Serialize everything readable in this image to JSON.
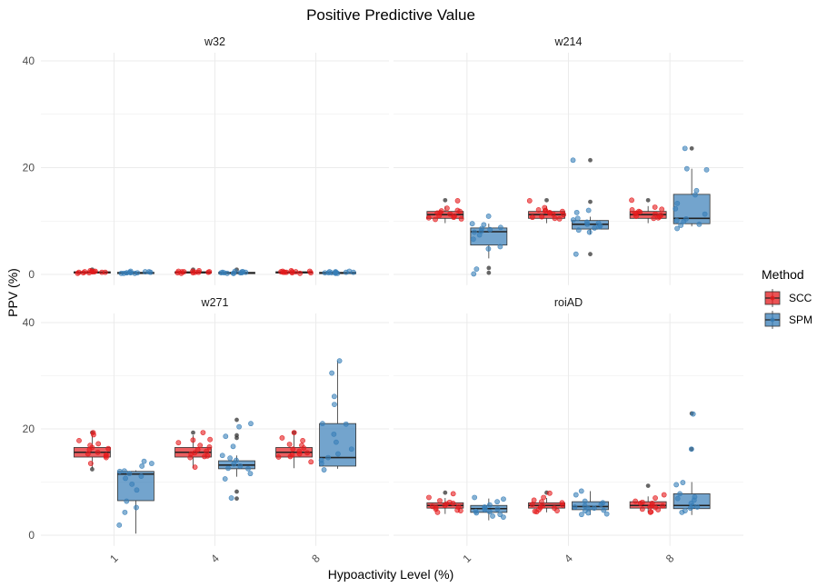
{
  "chart_data": {
    "type": "boxplot",
    "title": "Positive Predictive Value",
    "xlabel": "Hypoactivity Level (%)",
    "ylabel": "PPV (%)",
    "ylim": [
      -2,
      42
    ],
    "yticks": [
      0,
      20,
      40
    ],
    "categories": [
      "1",
      "4",
      "8"
    ],
    "legend": {
      "title": "Method",
      "placement": "right",
      "entries": [
        {
          "name": "SCC",
          "color": "#E41A1C"
        },
        {
          "name": "SPM",
          "color": "#377EB8"
        }
      ]
    },
    "colors": {
      "SCC": "#E41A1C",
      "SPM": "#377EB8",
      "grid": "#ebebeb",
      "outlier": "#333333"
    },
    "grid": true,
    "panels": [
      {
        "label": "w32",
        "boxes": {
          "SCC": [
            {
              "category": "1",
              "min": 0.1,
              "q1": 0.3,
              "median": 0.4,
              "q3": 0.5,
              "max": 0.7,
              "outliers": [
                0.9
              ]
            },
            {
              "category": "4",
              "min": 0.2,
              "q1": 0.3,
              "median": 0.4,
              "q3": 0.5,
              "max": 0.7,
              "outliers": [
                0.9
              ]
            },
            {
              "category": "8",
              "min": 0.2,
              "q1": 0.3,
              "median": 0.4,
              "q3": 0.5,
              "max": 0.7,
              "outliers": []
            }
          ],
          "SPM": [
            {
              "category": "1",
              "min": 0.1,
              "q1": 0.2,
              "median": 0.3,
              "q3": 0.4,
              "max": 0.6,
              "outliers": []
            },
            {
              "category": "4",
              "min": 0.1,
              "q1": 0.2,
              "median": 0.3,
              "q3": 0.4,
              "max": 0.6,
              "outliers": [
                0.9
              ]
            },
            {
              "category": "8",
              "min": 0.1,
              "q1": 0.2,
              "median": 0.3,
              "q3": 0.4,
              "max": 0.6,
              "outliers": []
            }
          ]
        },
        "points": {
          "SCC": [
            [
              0.6,
              0.5,
              0.4,
              0.3,
              0.7,
              0.5,
              0.2,
              0.4,
              0.6,
              0.3,
              0.5,
              0.4
            ],
            [
              0.4,
              0.6,
              0.3,
              0.5,
              0.7,
              0.2,
              0.4,
              0.6,
              0.5,
              0.3,
              0.4,
              0.5
            ],
            [
              0.5,
              0.3,
              0.6,
              0.4,
              0.7,
              0.5,
              0.2,
              0.4,
              0.6,
              0.3,
              0.5,
              0.4
            ]
          ],
          "SPM": [
            [
              0.3,
              0.4,
              0.2,
              0.5,
              0.3,
              0.6,
              0.2,
              0.4,
              0.3,
              0.5,
              0.2,
              0.3
            ],
            [
              0.3,
              0.2,
              0.4,
              0.5,
              0.3,
              0.2,
              0.6,
              0.4,
              0.3,
              0.2,
              0.5,
              0.3
            ],
            [
              0.4,
              0.3,
              0.5,
              0.2,
              0.3,
              0.6,
              0.4,
              0.2,
              0.5,
              0.3,
              0.4,
              0.3
            ]
          ]
        }
      },
      {
        "label": "w214",
        "boxes": {
          "SCC": [
            {
              "category": "1",
              "min": 9.6,
              "q1": 10.5,
              "median": 11.2,
              "q3": 11.8,
              "max": 12.8,
              "outliers": [
                13.9
              ]
            },
            {
              "category": "4",
              "min": 9.6,
              "q1": 10.5,
              "median": 11.2,
              "q3": 11.8,
              "max": 12.8,
              "outliers": [
                13.9
              ]
            },
            {
              "category": "8",
              "min": 9.6,
              "q1": 10.5,
              "median": 11.2,
              "q3": 11.8,
              "max": 12.8,
              "outliers": [
                13.9
              ]
            }
          ],
          "SPM": [
            {
              "category": "1",
              "min": 3.0,
              "q1": 5.5,
              "median": 8.0,
              "q3": 8.7,
              "max": 9.5,
              "outliers": [
                1.2,
                0.3
              ]
            },
            {
              "category": "4",
              "min": 7.5,
              "q1": 8.5,
              "median": 9.4,
              "q3": 10.1,
              "max": 10.8,
              "outliers": [
                13.6,
                3.8,
                21.4
              ]
            },
            {
              "category": "8",
              "min": 9.0,
              "q1": 9.5,
              "median": 10.5,
              "q3": 15.0,
              "max": 19.8,
              "outliers": [
                23.6
              ]
            }
          ]
        },
        "points": {
          "SCC": [
            [
              11.5,
              10.9,
              12.0,
              10.4,
              11.8,
              13.8,
              10.7,
              11.3,
              12.4,
              10.6,
              11.0,
              11.6,
              10.3,
              11.9
            ],
            [
              11.3,
              10.5,
              12.1,
              11.8,
              13.8,
              10.8,
              11.5,
              12.5,
              10.7,
              11.2,
              11.9,
              10.4,
              11.6,
              12.0
            ],
            [
              11.4,
              10.6,
              12.2,
              11.7,
              13.9,
              10.9,
              11.3,
              12.6,
              10.5,
              11.1,
              11.8,
              10.8,
              11.5,
              12.1
            ]
          ],
          "SPM": [
            [
              7.9,
              9.5,
              8.4,
              5.2,
              8.8,
              1.0,
              10.9,
              6.6,
              8.1,
              4.8,
              0.1,
              9.3,
              7.4,
              8.6
            ],
            [
              9.1,
              10.5,
              8.3,
              21.4,
              8.7,
              3.8,
              9.8,
              11.6,
              7.9,
              9.4,
              10.2,
              8.9,
              12.0,
              9.6
            ],
            [
              10.4,
              19.6,
              9.4,
              15.7,
              9.9,
              19.8,
              8.6,
              11.3,
              13.3,
              10.1,
              9.2,
              23.6,
              12.3,
              14.9
            ]
          ]
        }
      },
      {
        "label": "w271",
        "boxes": {
          "SCC": [
            {
              "category": "1",
              "min": 12.6,
              "q1": 14.7,
              "median": 15.6,
              "q3": 16.5,
              "max": 18.8,
              "outliers": [
                19.3,
                12.4
              ]
            },
            {
              "category": "4",
              "min": 12.6,
              "q1": 14.7,
              "median": 15.6,
              "q3": 16.5,
              "max": 18.8,
              "outliers": [
                19.3
              ]
            },
            {
              "category": "8",
              "min": 12.6,
              "q1": 14.7,
              "median": 15.6,
              "q3": 16.5,
              "max": 18.8,
              "outliers": [
                19.3
              ]
            }
          ],
          "SPM": [
            {
              "category": "1",
              "min": 0.3,
              "q1": 6.5,
              "median": 11.5,
              "q3": 12.0,
              "max": 12.2,
              "outliers": []
            },
            {
              "category": "4",
              "min": 11.0,
              "q1": 12.5,
              "median": 13.2,
              "q3": 14.0,
              "max": 15.0,
              "outliers": [
                21.7,
                18.8,
                18.3,
                8.2,
                6.9
              ]
            },
            {
              "category": "8",
              "min": 12.5,
              "q1": 13.0,
              "median": 14.6,
              "q3": 21.0,
              "max": 32.8,
              "outliers": []
            }
          ]
        },
        "points": {
          "SCC": [
            [
              16.9,
              15.3,
              18.9,
              14.6,
              19.3,
              16.1,
              17.8,
              14.9,
              15.6,
              16.5,
              15.1,
              17.2,
              13.5,
              16.3
            ],
            [
              15.8,
              14.6,
              17.9,
              16.9,
              19.3,
              14.9,
              15.5,
              18.0,
              16.1,
              14.8,
              15.3,
              17.4,
              16.6,
              12.8
            ],
            [
              15.8,
              14.8,
              17.8,
              16.4,
              19.3,
              15.1,
              15.5,
              16.9,
              14.7,
              17.1,
              16.2,
              13.8,
              15.3,
              18.3
            ]
          ],
          "SPM": [
            [
              13.0,
              12.1,
              10.7,
              8.5,
              11.6,
              1.9,
              13.5,
              5.2,
              12.0,
              9.6,
              4.3,
              11.1,
              6.4,
              13.9
            ],
            [
              14.5,
              21.0,
              13.0,
              16.7,
              12.5,
              18.6,
              7.0,
              13.4,
              11.6,
              20.4,
              15.0,
              10.6,
              14.1,
              12.6
            ],
            [
              26.1,
              15.3,
              30.5,
              14.1,
              21.0,
              20.9,
              17.5,
              32.8,
              16.2,
              12.3,
              24.6,
              14.6,
              19.0,
              13.5
            ]
          ]
        }
      },
      {
        "label": "roiAD",
        "boxes": {
          "SCC": [
            {
              "category": "1",
              "min": 4.0,
              "q1": 5.1,
              "median": 5.6,
              "q3": 6.1,
              "max": 7.0,
              "outliers": [
                8.0
              ]
            },
            {
              "category": "4",
              "min": 4.3,
              "q1": 5.1,
              "median": 5.6,
              "q3": 6.1,
              "max": 7.0,
              "outliers": [
                8.0
              ]
            },
            {
              "category": "8",
              "min": 4.3,
              "q1": 5.1,
              "median": 5.6,
              "q3": 6.3,
              "max": 7.3,
              "outliers": [
                9.3
              ]
            }
          ],
          "SPM": [
            {
              "category": "1",
              "min": 2.8,
              "q1": 4.3,
              "median": 5.0,
              "q3": 5.6,
              "max": 6.9,
              "outliers": []
            },
            {
              "category": "4",
              "min": 3.8,
              "q1": 4.8,
              "median": 5.4,
              "q3": 6.3,
              "max": 8.3,
              "outliers": []
            },
            {
              "category": "8",
              "min": 3.8,
              "q1": 5.0,
              "median": 5.6,
              "q3": 7.8,
              "max": 10.0,
              "outliers": [
                22.9,
                16.2
              ]
            }
          ]
        },
        "points": {
          "SCC": [
            [
              5.4,
              6.0,
              4.7,
              7.1,
              5.9,
              4.3,
              6.5,
              5.2,
              7.8,
              5.6,
              4.9,
              6.2,
              5.3,
              4.6
            ],
            [
              5.5,
              6.1,
              4.6,
              7.1,
              5.8,
              4.4,
              6.6,
              5.1,
              7.9,
              5.7,
              4.8,
              6.3,
              5.2,
              4.5
            ],
            [
              5.5,
              6.0,
              4.8,
              7.0,
              6.0,
              4.4,
              6.4,
              5.2,
              7.6,
              5.6,
              4.9,
              6.2,
              5.3,
              4.3
            ]
          ],
          "SPM": [
            [
              4.5,
              5.1,
              3.9,
              6.3,
              4.4,
              5.7,
              3.6,
              4.8,
              7.1,
              4.2,
              5.3,
              3.4,
              4.9,
              6.8
            ],
            [
              5.0,
              6.1,
              4.2,
              7.6,
              4.7,
              5.5,
              3.9,
              8.3,
              5.3,
              4.6,
              6.4,
              4.0,
              5.8,
              5.1
            ],
            [
              22.8,
              9.5,
              5.1,
              7.8,
              6.0,
              4.6,
              9.9,
              5.5,
              6.6,
              4.3,
              7.2,
              5.3,
              16.2,
              6.9
            ]
          ]
        }
      }
    ]
  }
}
